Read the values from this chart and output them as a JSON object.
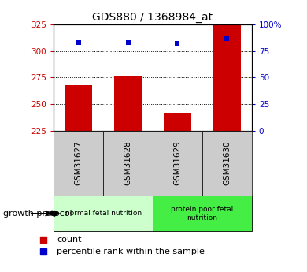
{
  "title": "GDS880 / 1368984_at",
  "samples": [
    "GSM31627",
    "GSM31628",
    "GSM31629",
    "GSM31630"
  ],
  "counts": [
    268,
    276,
    242,
    325
  ],
  "percentiles": [
    83,
    83,
    82,
    87
  ],
  "ylim_left": [
    225,
    325
  ],
  "ylim_right": [
    0,
    100
  ],
  "yticks_left": [
    225,
    250,
    275,
    300,
    325
  ],
  "yticks_right": [
    0,
    25,
    50,
    75,
    100
  ],
  "bar_color": "#cc0000",
  "dot_color": "#0000cc",
  "groups": [
    {
      "label": "normal fetal nutrition",
      "indices": [
        0,
        1
      ],
      "color": "#ccffcc"
    },
    {
      "label": "protein poor fetal\nnutrition",
      "indices": [
        2,
        3
      ],
      "color": "#44ee44"
    }
  ],
  "group_label": "growth protocol",
  "legend_count_label": "count",
  "legend_percentile_label": "percentile rank within the sample",
  "title_fontsize": 10,
  "axis_label_color_left": "#cc0000",
  "axis_label_color_right": "#0000cc",
  "tick_label_bg": "#cccccc",
  "fig_width": 3.9,
  "fig_height": 3.45,
  "fig_dpi": 100
}
